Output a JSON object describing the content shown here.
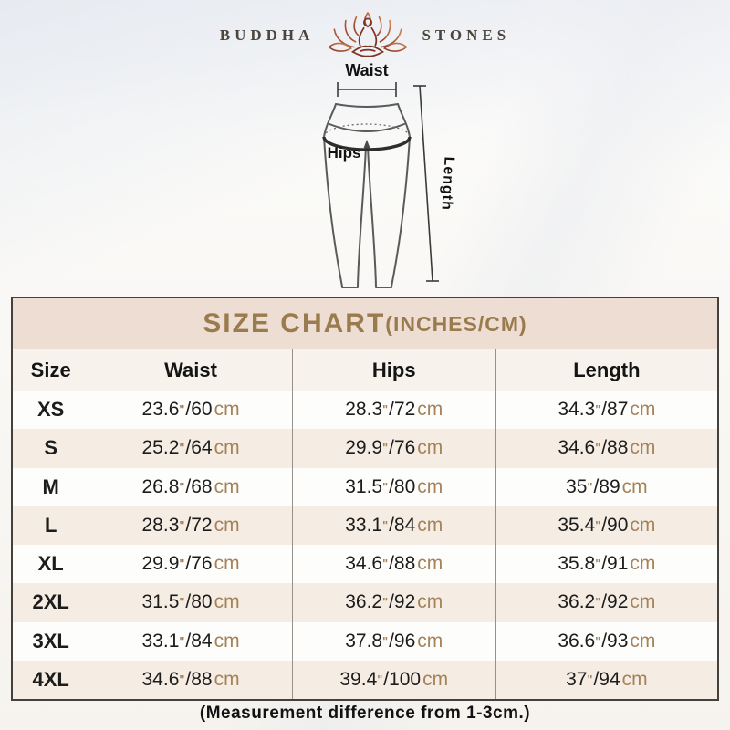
{
  "brand": {
    "left": "BUDDHA",
    "right": "STONES"
  },
  "diagram": {
    "waist_label": "Waist",
    "hips_label": "Hips",
    "length_label": "Length"
  },
  "size_chart": {
    "title": "SIZE CHART",
    "title_suffix": "(INCHES/CM)",
    "columns": [
      "Size",
      "Waist",
      "Hips",
      "Length"
    ],
    "units": {
      "inch_mark": "\"",
      "cm": "cm"
    },
    "rows": [
      {
        "size": "XS",
        "waist": {
          "in": "23.6",
          "cm": "60"
        },
        "hips": {
          "in": "28.3",
          "cm": "72"
        },
        "length": {
          "in": "34.3",
          "cm": "87"
        }
      },
      {
        "size": "S",
        "waist": {
          "in": "25.2",
          "cm": "64"
        },
        "hips": {
          "in": "29.9",
          "cm": "76"
        },
        "length": {
          "in": "34.6",
          "cm": "88"
        }
      },
      {
        "size": "M",
        "waist": {
          "in": "26.8",
          "cm": "68"
        },
        "hips": {
          "in": "31.5",
          "cm": "80"
        },
        "length": {
          "in": "35",
          "cm": "89"
        }
      },
      {
        "size": "L",
        "waist": {
          "in": "28.3",
          "cm": "72"
        },
        "hips": {
          "in": "33.1",
          "cm": "84"
        },
        "length": {
          "in": "35.4",
          "cm": "90"
        }
      },
      {
        "size": "XL",
        "waist": {
          "in": "29.9",
          "cm": "76"
        },
        "hips": {
          "in": "34.6",
          "cm": "88"
        },
        "length": {
          "in": "35.8",
          "cm": "91"
        }
      },
      {
        "size": "2XL",
        "waist": {
          "in": "31.5",
          "cm": "80"
        },
        "hips": {
          "in": "36.2",
          "cm": "92"
        },
        "length": {
          "in": "36.2",
          "cm": "92"
        }
      },
      {
        "size": "3XL",
        "waist": {
          "in": "33.1",
          "cm": "84"
        },
        "hips": {
          "in": "37.8",
          "cm": "96"
        },
        "length": {
          "in": "36.6",
          "cm": "93"
        }
      },
      {
        "size": "4XL",
        "waist": {
          "in": "34.6",
          "cm": "88"
        },
        "hips": {
          "in": "39.4",
          "cm": "100"
        },
        "length": {
          "in": "37",
          "cm": "94"
        }
      }
    ],
    "footnote": "(Measurement difference from 1-3cm.)"
  },
  "colors": {
    "title_text": "#9a7b4e",
    "title_bg": "#eeddd2",
    "header_bg": "#f7f2ec",
    "row_beige": "#f5ece3",
    "unit_brown": "#a5835a",
    "table_border": "#44403c",
    "lotus_dark": "#8a3928",
    "lotus_light": "#cf8352"
  }
}
